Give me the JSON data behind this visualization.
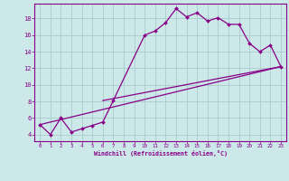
{
  "bg_color": "#cce8e8",
  "line_color": "#880088",
  "grid_color": "#aacccc",
  "xlabel": "Windchill (Refroidissement éolien,°C)",
  "ylabel_ticks": [
    4,
    6,
    8,
    10,
    12,
    14,
    16,
    18
  ],
  "xlim": [
    -0.5,
    23.5
  ],
  "ylim": [
    3.2,
    19.8
  ],
  "xticks": [
    0,
    1,
    2,
    3,
    4,
    5,
    6,
    7,
    8,
    9,
    10,
    11,
    12,
    13,
    14,
    15,
    16,
    17,
    18,
    19,
    20,
    21,
    22,
    23
  ],
  "main_x": [
    0,
    1,
    2,
    3,
    4,
    5,
    6,
    7,
    10,
    11,
    12,
    13,
    14,
    15,
    16,
    17,
    18,
    19,
    20,
    21,
    22,
    23
  ],
  "main_y": [
    5.2,
    4.0,
    6.0,
    4.3,
    4.7,
    5.1,
    5.5,
    8.1,
    16.0,
    16.5,
    17.5,
    19.2,
    18.2,
    18.7,
    17.7,
    18.1,
    17.3,
    17.3,
    15.0,
    14.0,
    14.8,
    12.2
  ],
  "line2_x": [
    0,
    23
  ],
  "line2_y": [
    5.2,
    12.2
  ],
  "line3_x": [
    0,
    23
  ],
  "line3_y": [
    5.2,
    12.2
  ],
  "line4_x": [
    6,
    23
  ],
  "line4_y": [
    8.1,
    12.2
  ],
  "line5_x": [
    0,
    23
  ],
  "line5_y": [
    5.2,
    12.2
  ]
}
